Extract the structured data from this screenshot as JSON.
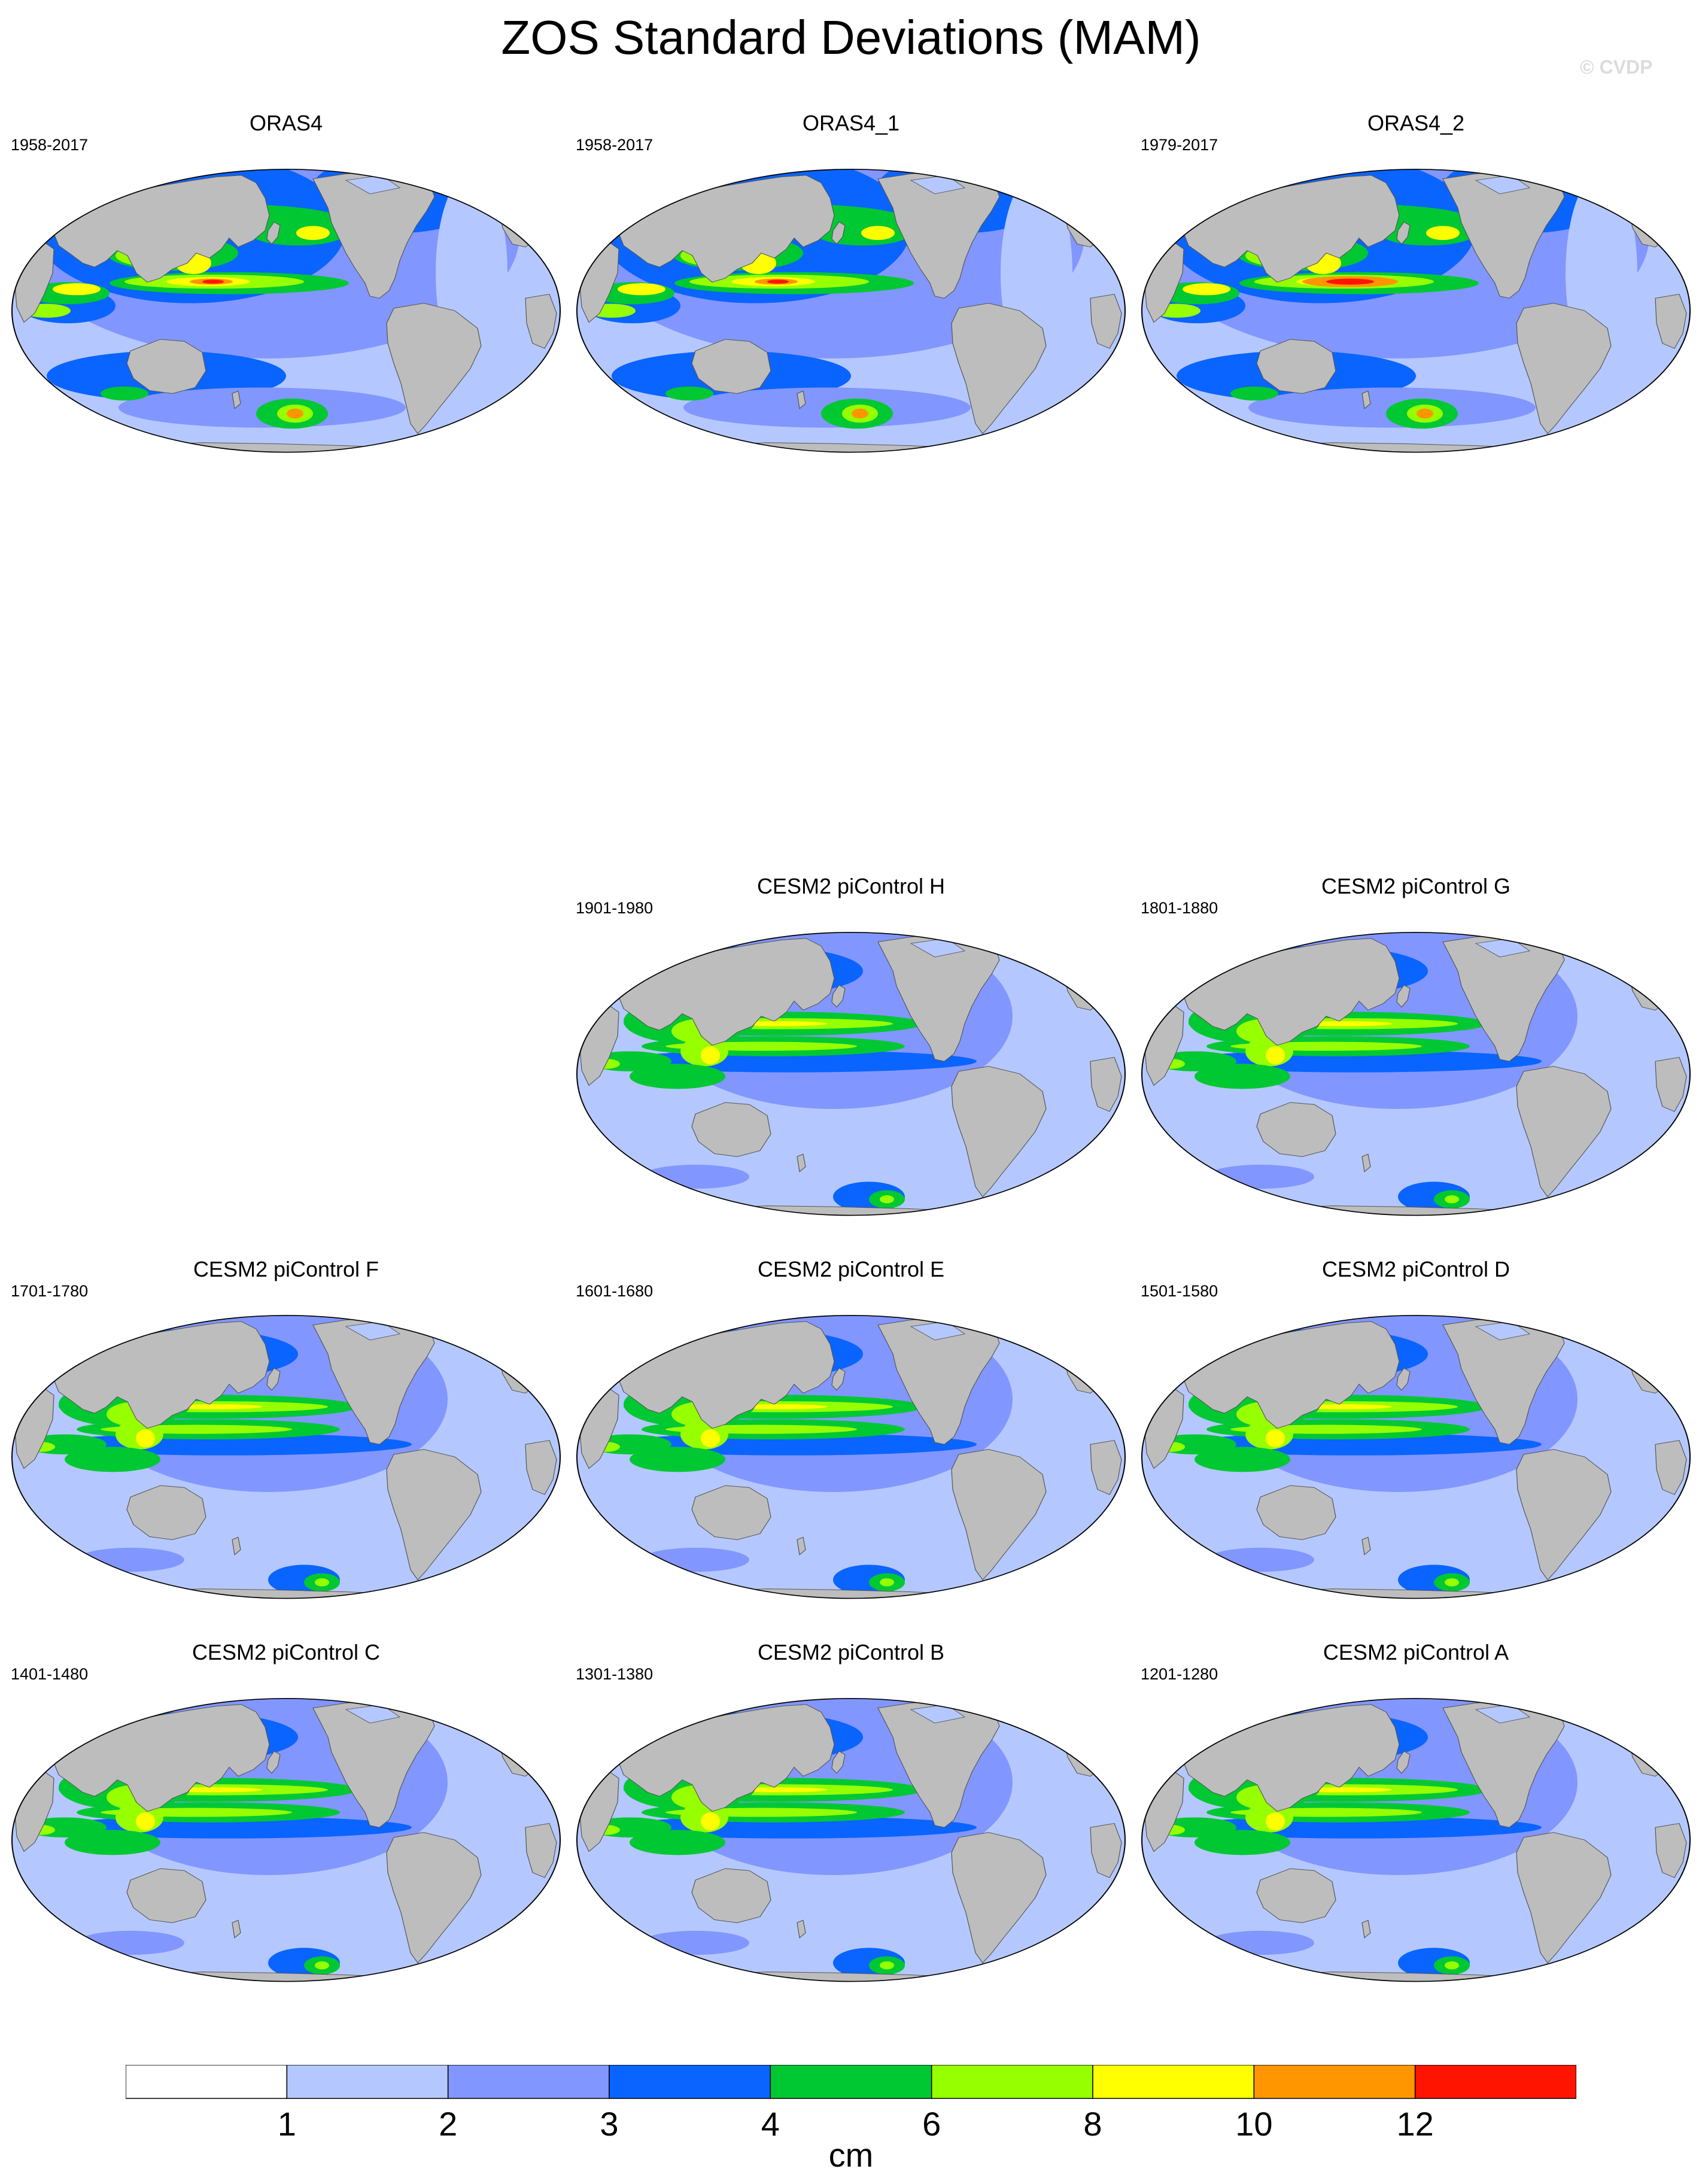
{
  "title": "ZOS Standard Deviations (MAM)",
  "watermark": "© CVDP",
  "colors": {
    "land": "#bdbdbd",
    "levels": [
      "#ffffff",
      "#b4c8ff",
      "#8296ff",
      "#0a64ff",
      "#00c832",
      "#96ff00",
      "#ffff00",
      "#ff9600",
      "#ff1400"
    ]
  },
  "panels": [
    {
      "title": "ORAS4",
      "period": "1958-2017",
      "row": 0,
      "col": 0,
      "variant": "obs"
    },
    {
      "title": "ORAS4_1",
      "period": "1958-2017",
      "row": 0,
      "col": 1,
      "variant": "obs"
    },
    {
      "title": "ORAS4_2",
      "period": "1979-2017",
      "row": 0,
      "col": 2,
      "variant": "obs2"
    },
    {
      "title": "CESM2 piControl H",
      "period": "1901-1980",
      "row": 2,
      "col": 1,
      "variant": "model"
    },
    {
      "title": "CESM2 piControl G",
      "period": "1801-1880",
      "row": 2,
      "col": 2,
      "variant": "model"
    },
    {
      "title": "CESM2 piControl F",
      "period": "1701-1780",
      "row": 3,
      "col": 0,
      "variant": "model"
    },
    {
      "title": "CESM2 piControl E",
      "period": "1601-1680",
      "row": 3,
      "col": 1,
      "variant": "model"
    },
    {
      "title": "CESM2 piControl D",
      "period": "1501-1580",
      "row": 3,
      "col": 2,
      "variant": "model"
    },
    {
      "title": "CESM2 piControl C",
      "period": "1401-1480",
      "row": 4,
      "col": 0,
      "variant": "model"
    },
    {
      "title": "CESM2 piControl B",
      "period": "1301-1380",
      "row": 4,
      "col": 1,
      "variant": "model"
    },
    {
      "title": "CESM2 piControl A",
      "period": "1201-1280",
      "row": 4,
      "col": 2,
      "variant": "model"
    }
  ],
  "colorbar": {
    "levels": [
      "1",
      "2",
      "3",
      "4",
      "6",
      "8",
      "10",
      "12"
    ],
    "unit": "cm"
  }
}
